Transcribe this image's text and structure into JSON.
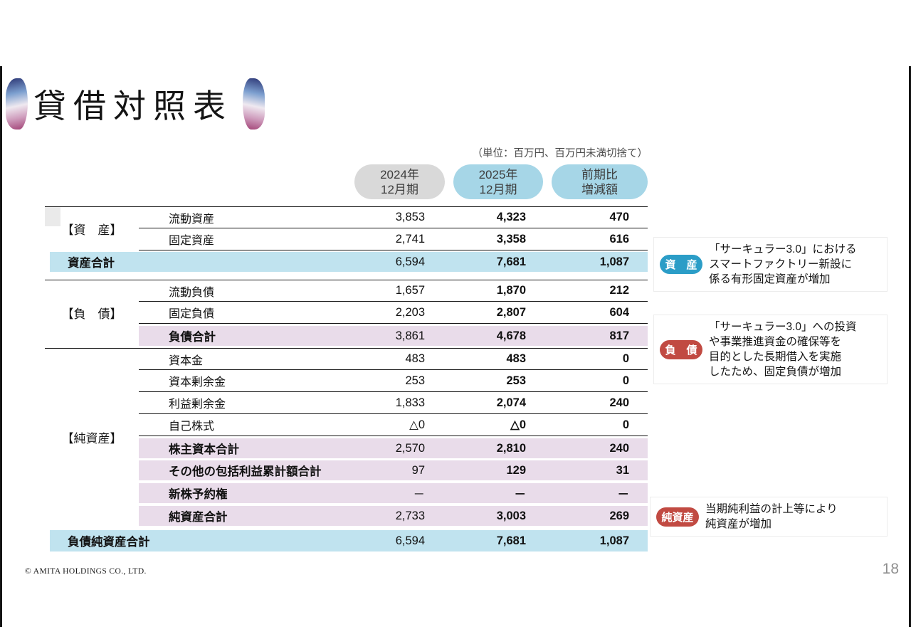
{
  "colors": {
    "header_blue": "#a6d6e7",
    "header_gray": "#d9d9d9",
    "band_blue": "#c0e3ef",
    "band_pink": "#e9dcea",
    "badge_blue": "#2b9dc7",
    "badge_red": "#c14a42"
  },
  "slide": {
    "title": "貸借対照表",
    "unit_note": "（単位：百万円、百万円未満切捨て）",
    "page_number": "18",
    "copyright": "© AMITA HOLDINGS CO., LTD."
  },
  "table": {
    "col_headers": {
      "y2024": {
        "line1": "2024年",
        "line2": "12月期"
      },
      "y2025": {
        "line1": "2025年",
        "line2": "12月期"
      },
      "diff": {
        "line1": "前期比",
        "line2": "増減額"
      }
    },
    "sections": {
      "assets": "【資　産】",
      "liabilities": "【負　債】",
      "net_assets": "【純資産】"
    },
    "rows": {
      "current_assets": {
        "label": "流動資産",
        "v2024": "3,853",
        "v2025": "4,323",
        "diff": "470"
      },
      "fixed_assets": {
        "label": "固定資産",
        "v2024": "2,741",
        "v2025": "3,358",
        "diff": "616"
      },
      "total_assets": {
        "label": "資産合計",
        "v2024": "6,594",
        "v2025": "7,681",
        "diff": "1,087"
      },
      "current_liabilities": {
        "label": "流動負債",
        "v2024": "1,657",
        "v2025": "1,870",
        "diff": "212"
      },
      "fixed_liabilities": {
        "label": "固定負債",
        "v2024": "2,203",
        "v2025": "2,807",
        "diff": "604"
      },
      "total_liabilities": {
        "label": "負債合計",
        "v2024": "3,861",
        "v2025": "4,678",
        "diff": "817"
      },
      "capital_stock": {
        "label": "資本金",
        "v2024": "483",
        "v2025": "483",
        "diff": "0"
      },
      "capital_surplus": {
        "label": "資本剰余金",
        "v2024": "253",
        "v2025": "253",
        "diff": "0"
      },
      "retained_earnings": {
        "label": "利益剰余金",
        "v2024": "1,833",
        "v2025": "2,074",
        "diff": "240"
      },
      "treasury_stock": {
        "label": "自己株式",
        "v2024": "△0",
        "v2025": "△0",
        "diff": "0"
      },
      "shareholders_equity_total": {
        "label": "株主資本合計",
        "v2024": "2,570",
        "v2025": "2,810",
        "diff": "240"
      },
      "accumulated_oci_total": {
        "label": "その他の包括利益累計額合計",
        "v2024": "97",
        "v2025": "129",
        "diff": "31"
      },
      "share_acquisition_rights": {
        "label": "新株予約権",
        "v2024": "－",
        "v2025": "－",
        "diff": "－"
      },
      "net_assets_total": {
        "label": "純資産合計",
        "v2024": "2,733",
        "v2025": "3,003",
        "diff": "269"
      },
      "liabilities_net_assets_total": {
        "label": "負債純資産合計",
        "v2024": "6,594",
        "v2025": "7,681",
        "diff": "1,087"
      }
    }
  },
  "annotations": {
    "assets": {
      "badge": "資　産",
      "lines": [
        "「サーキュラー3.0」における",
        "スマートファクトリー新設に",
        "係る有形固定資産が増加"
      ]
    },
    "liabilities": {
      "badge": "負　債",
      "lines": [
        "「サーキュラー3.0」への投資",
        "や事業推進資金の確保等を",
        "目的とした長期借入を実施",
        "したため、固定負債が増加"
      ]
    },
    "net_assets": {
      "badge": "純資産",
      "lines": [
        "当期純利益の計上等により",
        "純資産が増加"
      ]
    }
  }
}
